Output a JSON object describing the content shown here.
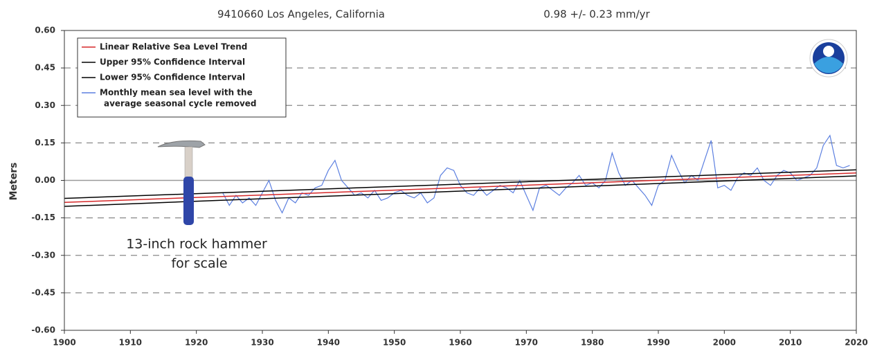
{
  "chart_data": {
    "type": "line",
    "title": "9410660 Los Angeles, California",
    "subtitle": "0.98 +/-  0.23 mm/yr",
    "y_label": "Meters",
    "annotation": [
      "13-inch rock hammer",
      "for scale"
    ],
    "xlim": [
      1900,
      2020
    ],
    "xticks": [
      1900,
      1910,
      1920,
      1930,
      1940,
      1950,
      1960,
      1970,
      1980,
      1990,
      2000,
      2010,
      2020
    ],
    "ylim": [
      -0.6,
      0.6
    ],
    "yticks": [
      {
        "value": 0.6,
        "label": "0.60"
      },
      {
        "value": 0.45,
        "label": "0.45"
      },
      {
        "value": 0.3,
        "label": "0.30"
      },
      {
        "value": 0.15,
        "label": "0.15"
      },
      {
        "value": 0,
        "label": "0.00"
      },
      {
        "value": -0.15,
        "label": "-0.15"
      },
      {
        "value": -0.3,
        "label": "-0.30"
      },
      {
        "value": -0.45,
        "label": "-0.45"
      },
      {
        "value": -0.6,
        "label": "-0.60"
      }
    ],
    "grid": true,
    "legend": "upper left",
    "series": [
      {
        "name": "Linear Relative Sea Level Trend",
        "color": "#d62728",
        "x": [
          1900,
          2020
        ],
        "values": [
          -0.088,
          0.03
        ]
      },
      {
        "name": "Upper 95% Confidence Interval",
        "color": "#000000",
        "x": [
          1900,
          2020
        ],
        "values": [
          -0.072,
          0.042
        ]
      },
      {
        "name": "Lower 95% Confidence Interval",
        "color": "#000000",
        "x": [
          1900,
          2020
        ],
        "values": [
          -0.104,
          0.018
        ]
      },
      {
        "name": [
          "Monthly mean sea level with the",
          "average seasonal cycle removed"
        ],
        "color": "#5b7fe0",
        "x": [
          1924,
          1925,
          1926,
          1927,
          1928,
          1929,
          1930,
          1931,
          1932,
          1933,
          1934,
          1935,
          1936,
          1937,
          1938,
          1939,
          1940,
          1941,
          1942,
          1943,
          1944,
          1945,
          1946,
          1947,
          1948,
          1949,
          1950,
          1951,
          1952,
          1953,
          1954,
          1955,
          1956,
          1957,
          1958,
          1959,
          1960,
          1961,
          1962,
          1963,
          1964,
          1965,
          1966,
          1967,
          1968,
          1969,
          1970,
          1971,
          1972,
          1973,
          1974,
          1975,
          1976,
          1977,
          1978,
          1979,
          1980,
          1981,
          1982,
          1983,
          1984,
          1985,
          1986,
          1987,
          1988,
          1989,
          1990,
          1991,
          1992,
          1993,
          1994,
          1995,
          1996,
          1997,
          1998,
          1999,
          2000,
          2001,
          2002,
          2003,
          2004,
          2005,
          2006,
          2007,
          2008,
          2009,
          2010,
          2011,
          2012,
          2013,
          2014,
          2015,
          2016,
          2017,
          2018,
          2019
        ],
        "values": [
          -0.05,
          -0.1,
          -0.06,
          -0.09,
          -0.07,
          -0.1,
          -0.05,
          0.0,
          -0.08,
          -0.13,
          -0.07,
          -0.09,
          -0.05,
          -0.06,
          -0.03,
          -0.02,
          0.04,
          0.08,
          0.0,
          -0.03,
          -0.06,
          -0.05,
          -0.07,
          -0.04,
          -0.08,
          -0.07,
          -0.05,
          -0.04,
          -0.06,
          -0.07,
          -0.05,
          -0.09,
          -0.07,
          0.02,
          0.05,
          0.04,
          -0.02,
          -0.05,
          -0.06,
          -0.03,
          -0.06,
          -0.04,
          -0.02,
          -0.03,
          -0.05,
          0.0,
          -0.06,
          -0.12,
          -0.03,
          -0.02,
          -0.04,
          -0.06,
          -0.03,
          -0.01,
          0.02,
          -0.02,
          -0.01,
          -0.03,
          0.0,
          0.11,
          0.03,
          -0.02,
          0.0,
          -0.03,
          -0.06,
          -0.1,
          -0.02,
          0.0,
          0.1,
          0.04,
          -0.01,
          0.02,
          0.0,
          0.08,
          0.16,
          -0.03,
          -0.02,
          -0.04,
          0.01,
          0.03,
          0.02,
          0.05,
          0.0,
          -0.02,
          0.02,
          0.04,
          0.03,
          0.0,
          0.01,
          0.02,
          0.05,
          0.14,
          0.18,
          0.06,
          0.05,
          0.06
        ]
      }
    ]
  }
}
